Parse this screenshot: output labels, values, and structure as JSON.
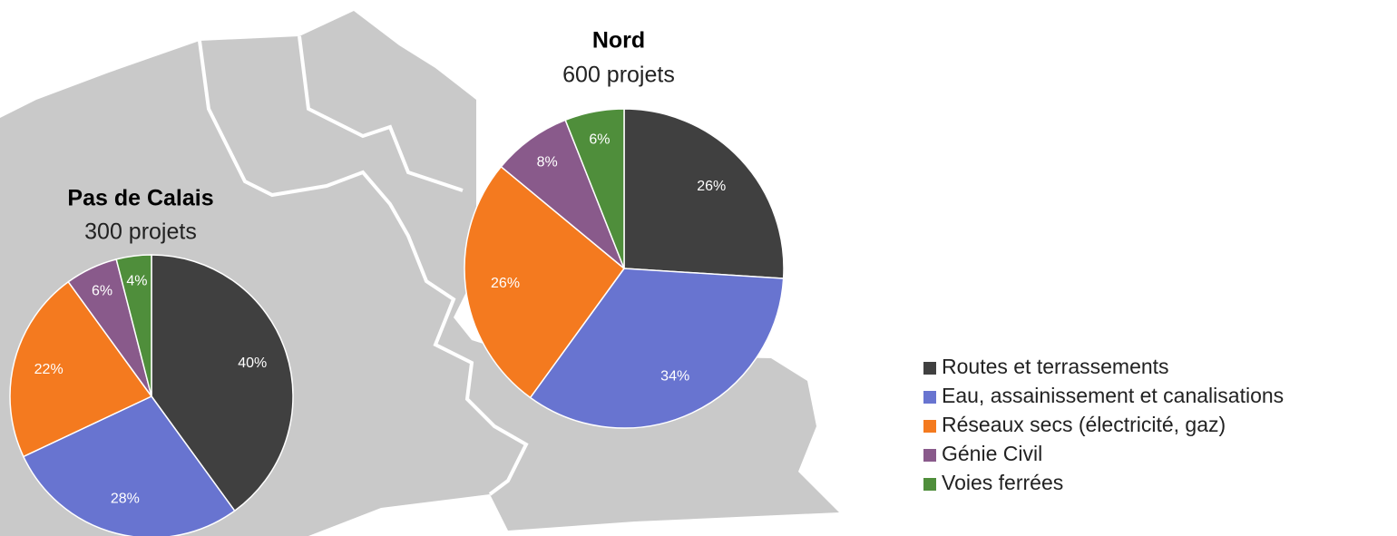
{
  "chart_data": [
    {
      "type": "pie",
      "title": "Pas de Calais",
      "subtitle": "300 projets",
      "categories": [
        "Routes et terrassements",
        "Eau, assainissement et canalisations",
        "Réseaux secs (électricité, gaz)",
        "Génie Civil",
        "Voies ferrées"
      ],
      "values": [
        40,
        28,
        22,
        6,
        4
      ],
      "value_labels": [
        "40%",
        "28%",
        "22%",
        "6%",
        "4%"
      ],
      "colors": [
        "#404040",
        "#6874d0",
        "#f47a1f",
        "#895a8b",
        "#4f8e3b"
      ],
      "legend": "right"
    },
    {
      "type": "pie",
      "title": "Nord",
      "subtitle": "600 projets",
      "categories": [
        "Routes et terrassements",
        "Eau, assainissement et canalisations",
        "Réseaux secs (électricité, gaz)",
        "Génie Civil",
        "Voies ferrées"
      ],
      "values": [
        26,
        34,
        26,
        8,
        6
      ],
      "value_labels": [
        "26%",
        "34%",
        "26%",
        "8%",
        "6%"
      ],
      "colors": [
        "#404040",
        "#6874d0",
        "#f47a1f",
        "#895a8b",
        "#4f8e3b"
      ],
      "legend": "right"
    }
  ]
}
